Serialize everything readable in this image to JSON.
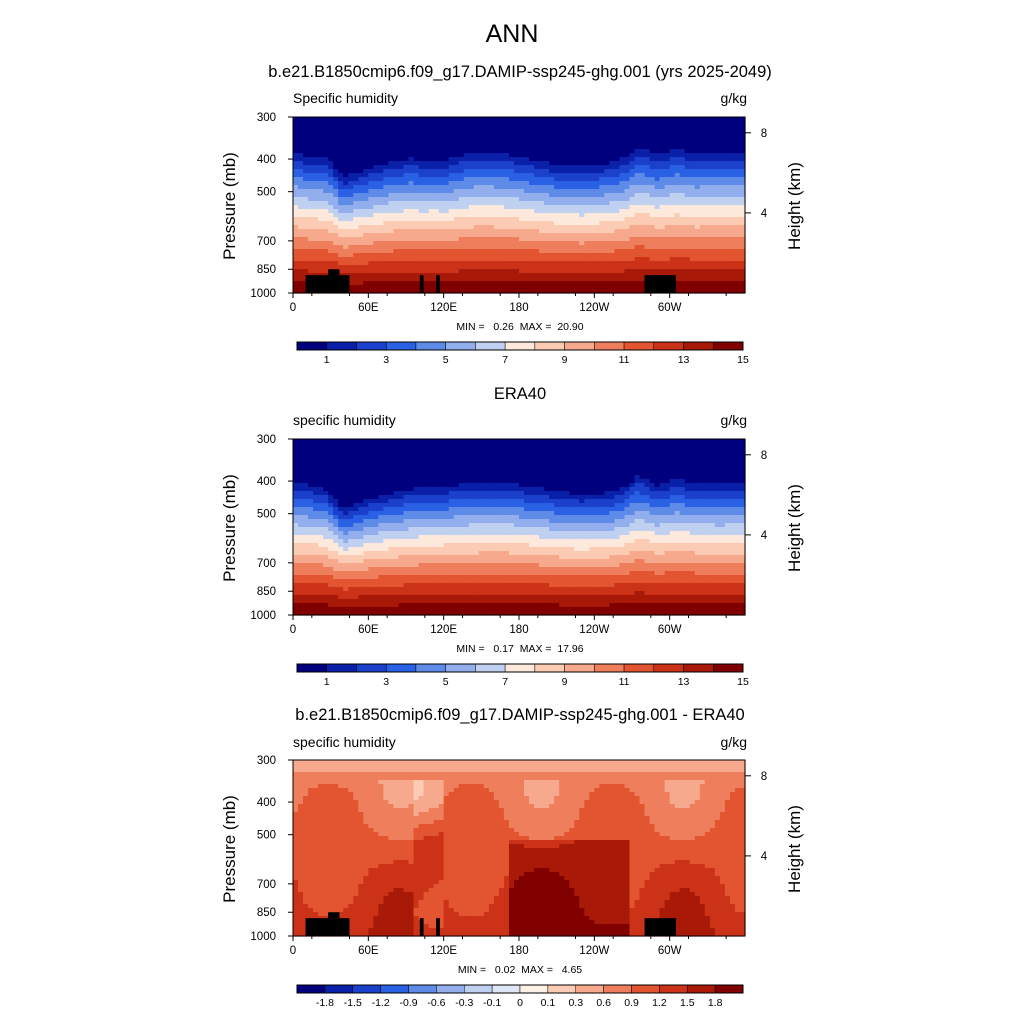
{
  "title": "ANN",
  "colors": {
    "full_ramp": [
      "#00007f",
      "#0a20a8",
      "#1a40cc",
      "#2a60e4",
      "#5f8be8",
      "#92aeec",
      "#c0d0f0",
      "#fde9dc",
      "#fbcbb4",
      "#f6a98c",
      "#ef7e5d",
      "#e35530",
      "#cc3218",
      "#a81908",
      "#800000"
    ],
    "diff_ramp": [
      "#00007f",
      "#0a20a8",
      "#1a40cc",
      "#2a60e4",
      "#5f8be8",
      "#92aeec",
      "#c0d0f0",
      "#dfe6f5",
      "#fdf0e4",
      "#fbcbb4",
      "#f6a98c",
      "#ef7e5d",
      "#e35530",
      "#cc3218",
      "#a81908",
      "#800000"
    ],
    "land": "#000000"
  },
  "chart_data": [
    {
      "type": "heatmap",
      "title": "b.e21.B1850cmip6.f09_g17.DAMIP-ssp245-ghg.001 (yrs 2025-2049)",
      "left_label": "Specific humidity",
      "right_label": "g/kg",
      "ylabel": "Pressure (mb)",
      "ylabel_right": "Height (km)",
      "xticks": [
        "0",
        "60E",
        "120E",
        "180",
        "120W",
        "60W"
      ],
      "xlim": [
        0,
        360
      ],
      "yticks": [
        "300",
        "400",
        "500",
        "700",
        "850",
        "1000"
      ],
      "ytick_values": [
        300,
        400,
        500,
        700,
        850,
        1000
      ],
      "ylim": [
        1000,
        300
      ],
      "right_ticks": [
        "8",
        "4"
      ],
      "right_tick_values": [
        8,
        4
      ],
      "min_max": "MIN =   0.26  MAX =  20.90",
      "colorbar_levels": [
        "1",
        "3",
        "5",
        "7",
        "9",
        "11",
        "13",
        "15"
      ],
      "profile": [
        [
          0,
          0.3
        ],
        [
          12,
          0.35
        ],
        [
          25,
          0.36
        ],
        [
          32,
          0.44
        ],
        [
          40,
          0.58
        ],
        [
          50,
          0.52
        ],
        [
          65,
          0.46
        ],
        [
          80,
          0.4
        ],
        [
          95,
          0.37
        ],
        [
          105,
          0.4
        ],
        [
          112,
          0.38
        ],
        [
          120,
          0.4
        ],
        [
          135,
          0.33
        ],
        [
          150,
          0.3
        ],
        [
          170,
          0.32
        ],
        [
          190,
          0.38
        ],
        [
          210,
          0.44
        ],
        [
          230,
          0.46
        ],
        [
          250,
          0.42
        ],
        [
          265,
          0.36
        ],
        [
          275,
          0.24
        ],
        [
          283,
          0.28
        ],
        [
          290,
          0.33
        ],
        [
          305,
          0.27
        ],
        [
          320,
          0.31
        ],
        [
          340,
          0.3
        ],
        [
          360,
          0.3
        ]
      ],
      "land_boxes": [
        [
          10,
          35,
          885,
          1000
        ],
        [
          28,
          37,
          850,
          885
        ],
        [
          35,
          45,
          885,
          1000
        ],
        [
          101,
          104,
          885,
          1000
        ],
        [
          114,
          117,
          885,
          1000
        ],
        [
          280,
          305,
          885,
          1000
        ]
      ]
    },
    {
      "type": "heatmap",
      "title": "ERA40",
      "left_label": "specific humidity",
      "right_label": "g/kg",
      "ylabel": "Pressure (mb)",
      "ylabel_right": "Height (km)",
      "xticks": [
        "0",
        "60E",
        "120E",
        "180",
        "120W",
        "60W"
      ],
      "xlim": [
        0,
        360
      ],
      "yticks": [
        "300",
        "400",
        "500",
        "700",
        "850",
        "1000"
      ],
      "ytick_values": [
        300,
        400,
        500,
        700,
        850,
        1000
      ],
      "ylim": [
        1000,
        300
      ],
      "right_ticks": [
        "8",
        "4"
      ],
      "right_tick_values": [
        8,
        4
      ],
      "min_max": "MIN =   0.17  MAX =  17.96",
      "colorbar_levels": [
        "1",
        "3",
        "5",
        "7",
        "9",
        "11",
        "13",
        "15"
      ],
      "profile": [
        [
          0,
          0.4
        ],
        [
          12,
          0.42
        ],
        [
          25,
          0.45
        ],
        [
          32,
          0.55
        ],
        [
          40,
          0.68
        ],
        [
          50,
          0.62
        ],
        [
          65,
          0.55
        ],
        [
          80,
          0.5
        ],
        [
          95,
          0.46
        ],
        [
          110,
          0.45
        ],
        [
          130,
          0.42
        ],
        [
          150,
          0.4
        ],
        [
          170,
          0.4
        ],
        [
          190,
          0.44
        ],
        [
          210,
          0.49
        ],
        [
          230,
          0.52
        ],
        [
          250,
          0.5
        ],
        [
          265,
          0.43
        ],
        [
          275,
          0.32
        ],
        [
          283,
          0.36
        ],
        [
          290,
          0.42
        ],
        [
          305,
          0.36
        ],
        [
          320,
          0.4
        ],
        [
          340,
          0.41
        ],
        [
          360,
          0.4
        ]
      ],
      "land_boxes": []
    },
    {
      "type": "heatmap",
      "title": "b.e21.B1850cmip6.f09_g17.DAMIP-ssp245-ghg.001 - ERA40",
      "left_label": "specific humidity",
      "right_label": "g/kg",
      "ylabel": "Pressure (mb)",
      "ylabel_right": "Height (km)",
      "xticks": [
        "0",
        "60E",
        "120E",
        "180",
        "120W",
        "60W"
      ],
      "xlim": [
        0,
        360
      ],
      "yticks": [
        "300",
        "400",
        "500",
        "700",
        "850",
        "1000"
      ],
      "ytick_values": [
        300,
        400,
        500,
        700,
        850,
        1000
      ],
      "ylim": [
        1000,
        300
      ],
      "right_ticks": [
        "8",
        "4"
      ],
      "right_tick_values": [
        8,
        4
      ],
      "min_max": "MIN =   0.02  MAX =   4.65",
      "colorbar_levels": [
        "-1.8",
        "-1.5",
        "-1.2",
        "-0.9",
        "-0.6",
        "-0.3",
        "-0.1",
        "0",
        "0.1",
        "0.3",
        "0.6",
        "0.9",
        "1.2",
        "1.5",
        "1.8"
      ],
      "land_boxes": [
        [
          10,
          35,
          885,
          1000
        ],
        [
          28,
          37,
          850,
          885
        ],
        [
          35,
          45,
          885,
          1000
        ],
        [
          101,
          104,
          885,
          1000
        ],
        [
          114,
          117,
          885,
          1000
        ],
        [
          280,
          305,
          885,
          1000
        ]
      ]
    }
  ]
}
